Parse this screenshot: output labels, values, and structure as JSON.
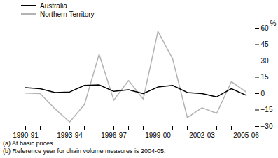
{
  "chart_data": {
    "type": "line",
    "categories": [
      "1990-91",
      null,
      null,
      "1993-94",
      null,
      null,
      "1996-97",
      null,
      null,
      "1999-00",
      null,
      null,
      "2002-03",
      null,
      null,
      "2005-06"
    ],
    "series": [
      {
        "name": "Australia",
        "color": "#000000",
        "values": [
          5.5,
          4.5,
          1,
          1.5,
          7.5,
          8,
          2,
          3.5,
          0,
          6,
          7.5,
          1,
          0,
          -3,
          4.5,
          -1.5
        ]
      },
      {
        "name": "Northern Territory",
        "color": "#b3b3b3",
        "values": [
          0.5,
          0,
          -14,
          -26,
          -10,
          36,
          -6,
          12,
          -5,
          57,
          32,
          -22,
          -13,
          -18,
          11,
          1.5
        ]
      }
    ],
    "y_label": "%",
    "ylim": [
      -30,
      60
    ],
    "yticks": [
      -30,
      -15,
      0,
      15,
      30,
      45,
      60
    ],
    "grid": false,
    "legend": "top-left",
    "annotations": [
      "(a) At basic prices.",
      "(b) Reference year for chain volume measures is 2004-05."
    ]
  }
}
